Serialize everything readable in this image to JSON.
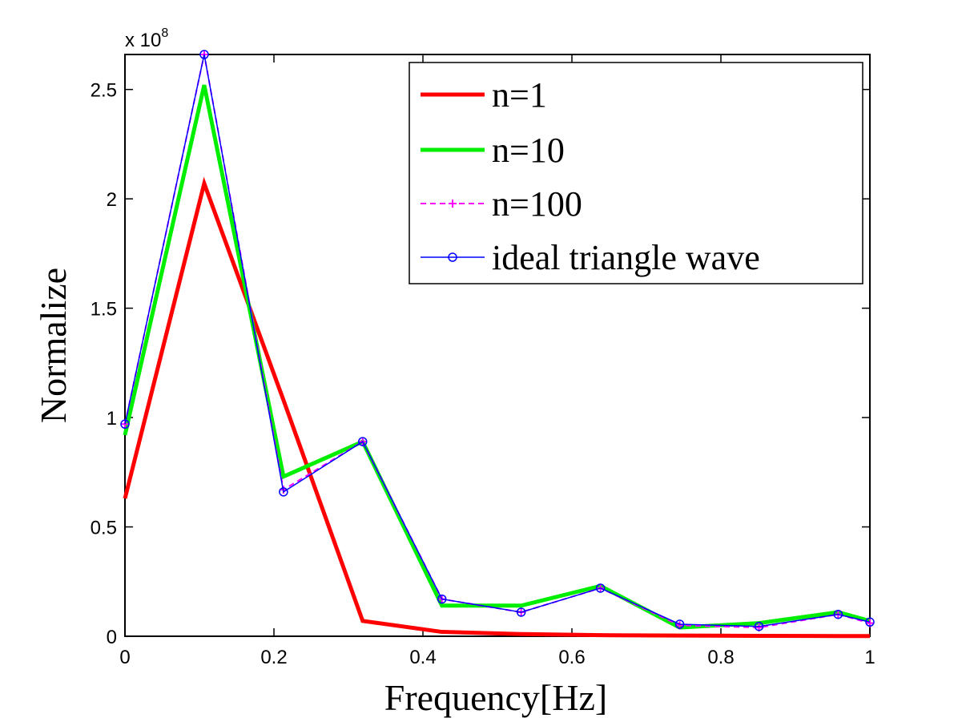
{
  "chart_data": {
    "type": "line",
    "xlabel": "Frequency[Hz]",
    "ylabel": "Normalize",
    "y_exponent_prefix": "x 10",
    "y_exponent_power": "8",
    "xlim": [
      0,
      1
    ],
    "ylim": [
      0,
      2.66
    ],
    "xticks": [
      "0",
      "0.2",
      "0.4",
      "0.6",
      "0.8",
      "1"
    ],
    "yticks": [
      "0",
      "0.5",
      "1",
      "1.5",
      "2",
      "2.5"
    ],
    "grid": false,
    "legend_position": "top-right",
    "series": [
      {
        "name": "n=1",
        "color": "#ff0000",
        "style": "solid-thick",
        "x": [
          0,
          0.1064,
          0.2128,
          0.3191,
          0.4255,
          0.5319,
          0.6383,
          0.7447,
          0.8511,
          0.9574,
          1.0
        ],
        "y": [
          0.63,
          2.07,
          1.08,
          0.07,
          0.02,
          0.01,
          0.005,
          0.003,
          0.002,
          0.001,
          0.001
        ]
      },
      {
        "name": "n=10",
        "color": "#00ee00",
        "style": "solid-thick",
        "x": [
          0,
          0.1064,
          0.2128,
          0.3191,
          0.4255,
          0.5319,
          0.6383,
          0.7447,
          0.8511,
          0.9574,
          1.0
        ],
        "y": [
          0.92,
          2.52,
          0.73,
          0.89,
          0.14,
          0.14,
          0.23,
          0.04,
          0.06,
          0.11,
          0.07
        ]
      },
      {
        "name": "n=100",
        "color": "#ff00ff",
        "style": "dashed-plus",
        "x": [
          0,
          0.1064,
          0.2128,
          0.3191,
          0.4255,
          0.5319,
          0.6383,
          0.7447,
          0.8511,
          0.9574,
          1.0
        ],
        "y": [
          0.97,
          2.66,
          0.67,
          0.89,
          0.17,
          0.11,
          0.22,
          0.05,
          0.04,
          0.1,
          0.06
        ]
      },
      {
        "name": "ideal triangle wave",
        "color": "#0000ff",
        "style": "solid-circle",
        "x": [
          0,
          0.1064,
          0.2128,
          0.3191,
          0.4255,
          0.5319,
          0.6383,
          0.7447,
          0.8511,
          0.9574,
          1.0
        ],
        "y": [
          0.97,
          2.66,
          0.66,
          0.89,
          0.17,
          0.11,
          0.22,
          0.055,
          0.045,
          0.1,
          0.065
        ]
      }
    ]
  }
}
